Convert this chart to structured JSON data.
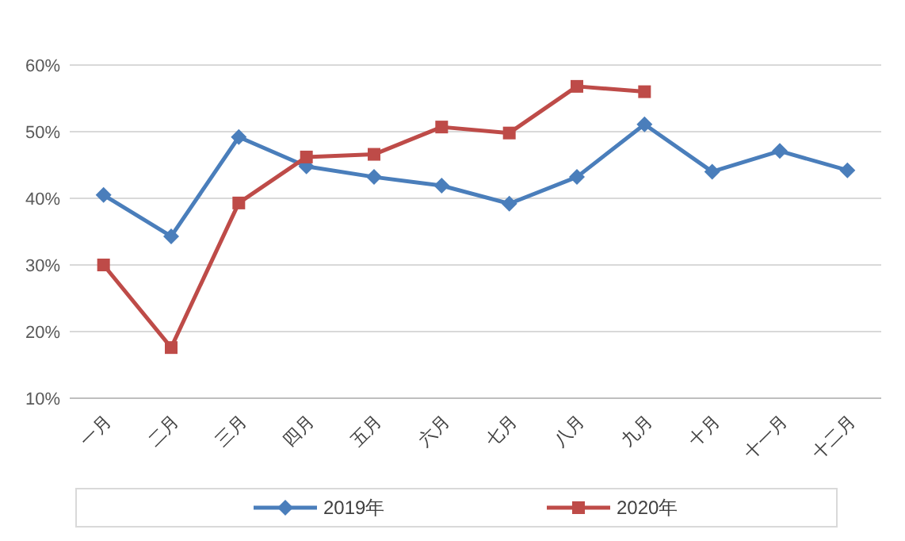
{
  "chart_data": {
    "type": "line",
    "categories": [
      "一月",
      "二月",
      "三月",
      "四月",
      "五月",
      "六月",
      "七月",
      "八月",
      "九月",
      "十月",
      "十一月",
      "十二月"
    ],
    "series": [
      {
        "name": "2019年",
        "color": "#4a7ebb",
        "marker": "diamond",
        "values": [
          40.5,
          34.3,
          49.2,
          44.8,
          43.2,
          41.9,
          39.2,
          43.2,
          51.1,
          44,
          47.1,
          44.2
        ]
      },
      {
        "name": "2020年",
        "color": "#be4b48",
        "marker": "square",
        "values": [
          30,
          17.6,
          39.3,
          46.2,
          46.6,
          50.7,
          49.8,
          56.8,
          56,
          null,
          null,
          null
        ]
      }
    ],
    "ylim": [
      10,
      60
    ],
    "yticks": [
      {
        "value": 10,
        "label": "10%"
      },
      {
        "value": 20,
        "label": "20%"
      },
      {
        "value": 30,
        "label": "30%"
      },
      {
        "value": 40,
        "label": "40%"
      },
      {
        "value": 50,
        "label": "50%"
      },
      {
        "value": 60,
        "label": "60%"
      }
    ],
    "grid": "y",
    "legend": "bottom",
    "line_style": "solid"
  }
}
